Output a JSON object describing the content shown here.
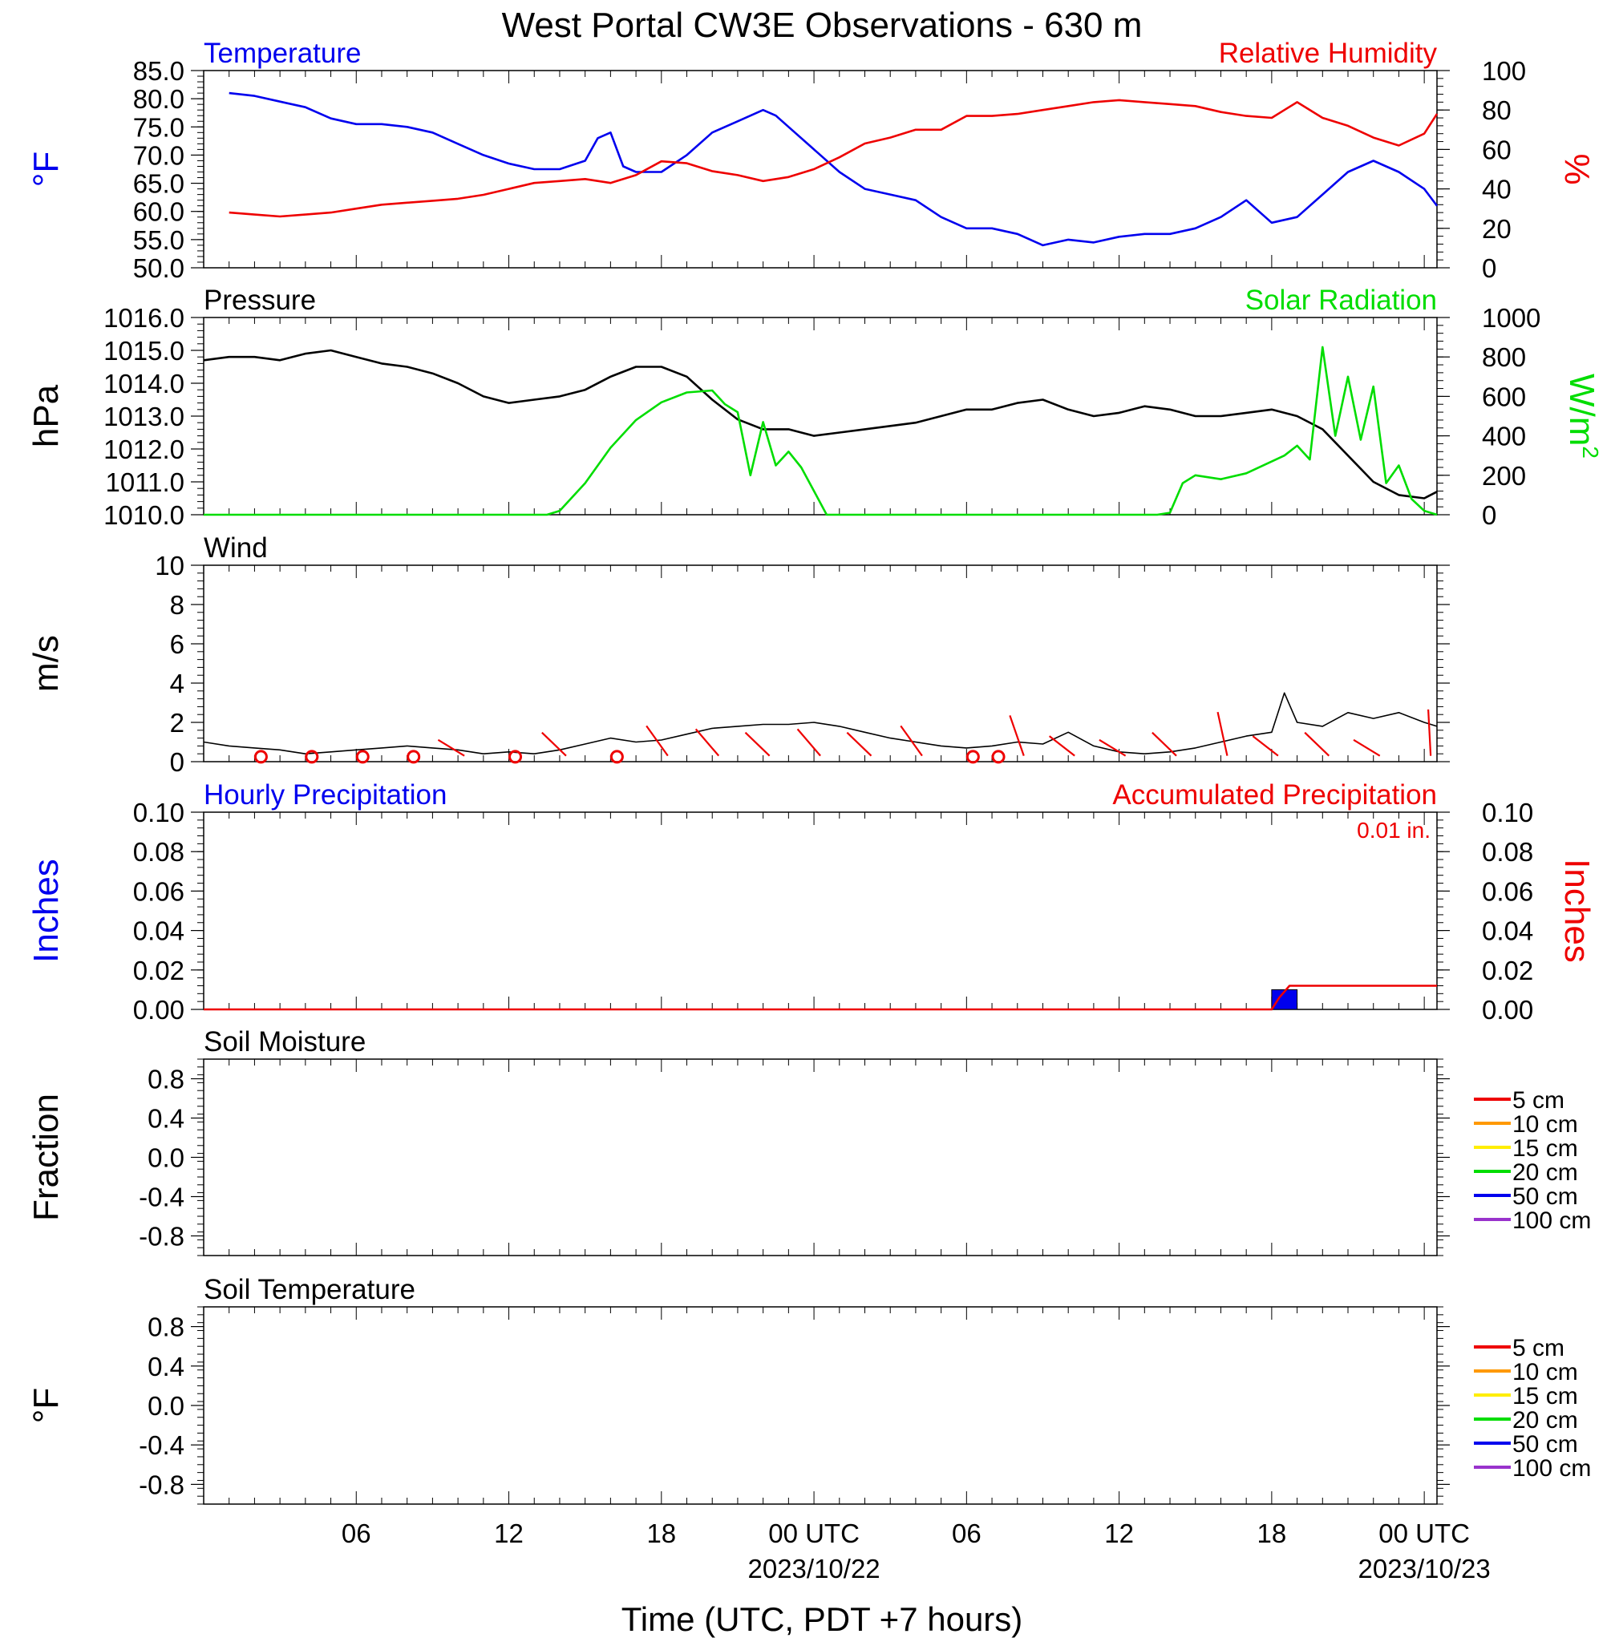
{
  "title": "West Portal CW3E Observations - 630 m",
  "xlabel": "Time (UTC, PDT +7 hours)",
  "x_ticks": [
    {
      "hour": 6,
      "label": "06",
      "date": ""
    },
    {
      "hour": 12,
      "label": "12",
      "date": ""
    },
    {
      "hour": 18,
      "label": "18",
      "date": ""
    },
    {
      "hour": 24,
      "label": "00 UTC",
      "date": "2023/10/22"
    },
    {
      "hour": 30,
      "label": "06",
      "date": ""
    },
    {
      "hour": 36,
      "label": "12",
      "date": ""
    },
    {
      "hour": 42,
      "label": "18",
      "date": ""
    },
    {
      "hour": 48,
      "label": "00 UTC",
      "date": "2023/10/23"
    }
  ],
  "colors": {
    "temperature": "#0000ee",
    "humidity": "#ee0000",
    "pressure": "#000000",
    "solar": "#00dd00",
    "wind": "#000000",
    "barb": "#ee0000",
    "hourly_precip": "#0000ee",
    "accum_precip": "#ee0000"
  },
  "chart_data": [
    {
      "type": "line",
      "panel": "temperature-humidity",
      "series": [
        {
          "name": "Temperature",
          "axis": "left",
          "x": [
            1,
            2,
            3,
            4,
            5,
            6,
            7,
            8,
            9,
            10,
            11,
            12,
            13,
            14,
            15,
            15.5,
            16,
            16.5,
            17,
            18,
            19,
            20,
            21,
            22,
            22.5,
            23,
            24,
            25,
            26,
            27,
            28,
            29,
            30,
            31,
            32,
            33,
            34,
            35,
            36,
            37,
            38,
            39,
            40,
            41,
            42,
            43,
            44,
            45,
            46,
            47,
            48,
            48.5
          ],
          "y": [
            81,
            80.5,
            79.5,
            78.5,
            76.5,
            75.5,
            75.5,
            75,
            74,
            72,
            70,
            68.5,
            67.5,
            67.5,
            69,
            73,
            74,
            68,
            67,
            67,
            70,
            74,
            76,
            78,
            77,
            75,
            71,
            67,
            64,
            63,
            62,
            59,
            57,
            57,
            56,
            54,
            55,
            54.5,
            55.5,
            56,
            56,
            57,
            59,
            62,
            58,
            59,
            63,
            67,
            69,
            67,
            64,
            61
          ]
        },
        {
          "name": "Relative Humidity",
          "axis": "right",
          "x": [
            1,
            2,
            3,
            4,
            5,
            6,
            7,
            8,
            9,
            10,
            11,
            12,
            13,
            14,
            15,
            16,
            17,
            18,
            19,
            20,
            21,
            22,
            23,
            24,
            25,
            26,
            27,
            28,
            29,
            30,
            31,
            32,
            33,
            34,
            35,
            36,
            37,
            38,
            39,
            40,
            41,
            42,
            42.5,
            43,
            44,
            45,
            46,
            47,
            48,
            48.5
          ],
          "y": [
            28,
            27,
            26,
            27,
            28,
            30,
            32,
            33,
            34,
            35,
            37,
            40,
            43,
            44,
            45,
            43,
            47,
            54,
            53,
            49,
            47,
            44,
            46,
            50,
            56,
            63,
            66,
            70,
            70,
            77,
            77,
            78,
            80,
            82,
            84,
            85,
            84,
            83,
            82,
            79,
            77,
            76,
            80,
            84,
            76,
            72,
            66,
            62,
            68,
            78
          ]
        }
      ],
      "left_axis": {
        "label": "°F",
        "range": [
          50,
          85
        ],
        "ticks": [
          "50.0",
          "55.0",
          "60.0",
          "65.0",
          "70.0",
          "75.0",
          "80.0",
          "85.0"
        ]
      },
      "right_axis": {
        "label": "%",
        "range": [
          0,
          100
        ],
        "ticks": [
          "0",
          "20",
          "40",
          "60",
          "80",
          "100"
        ]
      },
      "left_title": "Temperature",
      "right_title": "Relative Humidity"
    },
    {
      "type": "line",
      "panel": "pressure-solar",
      "series": [
        {
          "name": "Pressure",
          "axis": "left",
          "x": [
            0,
            1,
            2,
            3,
            4,
            5,
            6,
            7,
            8,
            9,
            10,
            11,
            12,
            13,
            14,
            15,
            16,
            17,
            18,
            19,
            20,
            21,
            22,
            23,
            24,
            25,
            26,
            27,
            28,
            29,
            30,
            31,
            32,
            33,
            34,
            35,
            36,
            37,
            38,
            39,
            40,
            41,
            42,
            43,
            44,
            45,
            46,
            47,
            48,
            48.5
          ],
          "y": [
            1014.7,
            1014.8,
            1014.8,
            1014.7,
            1014.9,
            1015.0,
            1014.8,
            1014.6,
            1014.5,
            1014.3,
            1014.0,
            1013.6,
            1013.4,
            1013.5,
            1013.6,
            1013.8,
            1014.2,
            1014.5,
            1014.5,
            1014.2,
            1013.5,
            1012.9,
            1012.6,
            1012.6,
            1012.4,
            1012.5,
            1012.6,
            1012.7,
            1012.8,
            1013.0,
            1013.2,
            1013.2,
            1013.4,
            1013.5,
            1013.2,
            1013.0,
            1013.1,
            1013.3,
            1013.2,
            1013.0,
            1013.0,
            1013.1,
            1013.2,
            1013.0,
            1012.6,
            1011.8,
            1011.0,
            1010.6,
            1010.5,
            1010.7
          ]
        },
        {
          "name": "Solar Radiation",
          "axis": "right",
          "x": [
            0,
            13.5,
            14,
            15,
            16,
            17,
            18,
            19,
            20,
            20.5,
            21,
            21.5,
            22,
            22.5,
            23,
            23.5,
            24,
            24.5,
            37.5,
            38,
            38.5,
            39,
            40,
            41,
            42,
            42.5,
            43,
            43.5,
            44,
            44.5,
            45,
            45.5,
            46,
            46.5,
            47,
            47.5,
            48,
            48.5
          ],
          "y": [
            0,
            0,
            20,
            160,
            340,
            480,
            570,
            620,
            630,
            560,
            520,
            200,
            470,
            250,
            320,
            240,
            120,
            0,
            0,
            10,
            160,
            200,
            180,
            210,
            270,
            300,
            350,
            280,
            850,
            400,
            700,
            380,
            650,
            160,
            250,
            80,
            20,
            0
          ]
        }
      ],
      "left_axis": {
        "label": "hPa",
        "range": [
          1010,
          1016
        ],
        "ticks": [
          "1010.0",
          "1011.0",
          "1012.0",
          "1013.0",
          "1014.0",
          "1015.0",
          "1016.0"
        ]
      },
      "right_axis": {
        "label": "W/m",
        "label_sup": "2",
        "range": [
          0,
          1000
        ],
        "ticks": [
          "0",
          "200",
          "400",
          "600",
          "800",
          "1000"
        ]
      },
      "left_title": "Pressure",
      "right_title": "Solar Radiation"
    },
    {
      "type": "line",
      "panel": "wind",
      "series": [
        {
          "name": "Wind",
          "x": [
            0,
            1,
            2,
            3,
            4,
            5,
            6,
            7,
            8,
            9,
            10,
            11,
            12,
            13,
            14,
            15,
            16,
            17,
            18,
            19,
            20,
            21,
            22,
            23,
            24,
            25,
            26,
            27,
            28,
            29,
            30,
            31,
            32,
            33,
            34,
            35,
            36,
            37,
            38,
            39,
            40,
            41,
            42,
            42.5,
            43,
            44,
            45,
            46,
            47,
            48,
            48.5
          ],
          "y": [
            1.0,
            0.8,
            0.7,
            0.6,
            0.4,
            0.5,
            0.6,
            0.7,
            0.8,
            0.7,
            0.6,
            0.4,
            0.5,
            0.4,
            0.6,
            0.9,
            1.2,
            1.0,
            1.1,
            1.4,
            1.7,
            1.8,
            1.9,
            1.9,
            2.0,
            1.8,
            1.5,
            1.2,
            1.0,
            0.8,
            0.7,
            0.8,
            1.0,
            0.9,
            1.5,
            0.8,
            0.5,
            0.4,
            0.5,
            0.7,
            1.0,
            1.3,
            1.5,
            3.5,
            2.0,
            1.8,
            2.5,
            2.2,
            2.5,
            2.0,
            1.8
          ]
        }
      ],
      "barbs_hours": [
        2,
        4,
        6,
        8,
        10,
        12,
        14,
        16,
        18,
        20,
        22,
        24,
        26,
        28,
        30,
        32,
        34,
        36,
        38,
        40,
        42,
        44,
        46,
        48
      ],
      "calm_hours": [
        2,
        4,
        6,
        8,
        12,
        16,
        30,
        31
      ],
      "left_axis": {
        "label": "m/s",
        "range": [
          0,
          10
        ],
        "ticks": [
          "0",
          "2",
          "4",
          "6",
          "8",
          "10"
        ]
      },
      "left_title": "Wind"
    },
    {
      "type": "bar",
      "panel": "precipitation",
      "series": [
        {
          "name": "Hourly Precipitation",
          "axis": "left",
          "x": [
            42
          ],
          "y": [
            0.01
          ]
        },
        {
          "name": "Accumulated Precipitation",
          "axis": "right",
          "x": [
            0,
            42,
            42.3,
            42.7,
            48.5
          ],
          "y": [
            0,
            0,
            0.006,
            0.012,
            0.012
          ]
        }
      ],
      "left_axis": {
        "label": "Inches",
        "range": [
          0,
          0.1
        ],
        "ticks": [
          "0.00",
          "0.02",
          "0.04",
          "0.06",
          "0.08",
          "0.10"
        ]
      },
      "right_axis": {
        "label": "Inches",
        "range": [
          0,
          0.1
        ],
        "ticks": [
          "0.00",
          "0.02",
          "0.04",
          "0.06",
          "0.08",
          "0.10"
        ]
      },
      "left_title": "Hourly Precipitation",
      "right_title": "Accumulated Precipitation",
      "annotation": "0.01 in."
    },
    {
      "type": "line",
      "panel": "soil-moisture",
      "series": [],
      "left_axis": {
        "label": "Fraction",
        "range": [
          -1,
          1
        ],
        "ticks": [
          "-0.8",
          "-0.4",
          "0.0",
          "0.4",
          "0.8"
        ]
      },
      "left_title": "Soil Moisture",
      "legend": [
        {
          "name": "5 cm",
          "color": "#ee0000"
        },
        {
          "name": "10 cm",
          "color": "#ff9900"
        },
        {
          "name": "15 cm",
          "color": "#ffee00"
        },
        {
          "name": "20 cm",
          "color": "#00dd00"
        },
        {
          "name": "50 cm",
          "color": "#0000ee"
        },
        {
          "name": "100 cm",
          "color": "#9933cc"
        }
      ]
    },
    {
      "type": "line",
      "panel": "soil-temperature",
      "series": [],
      "left_axis": {
        "label": "°F",
        "range": [
          -1,
          1
        ],
        "ticks": [
          "-0.8",
          "-0.4",
          "0.0",
          "0.4",
          "0.8"
        ]
      },
      "left_title": "Soil Temperature",
      "legend": [
        {
          "name": "5 cm",
          "color": "#ee0000"
        },
        {
          "name": "10 cm",
          "color": "#ff9900"
        },
        {
          "name": "15 cm",
          "color": "#ffee00"
        },
        {
          "name": "20 cm",
          "color": "#00dd00"
        },
        {
          "name": "50 cm",
          "color": "#0000ee"
        },
        {
          "name": "100 cm",
          "color": "#9933cc"
        }
      ]
    }
  ]
}
